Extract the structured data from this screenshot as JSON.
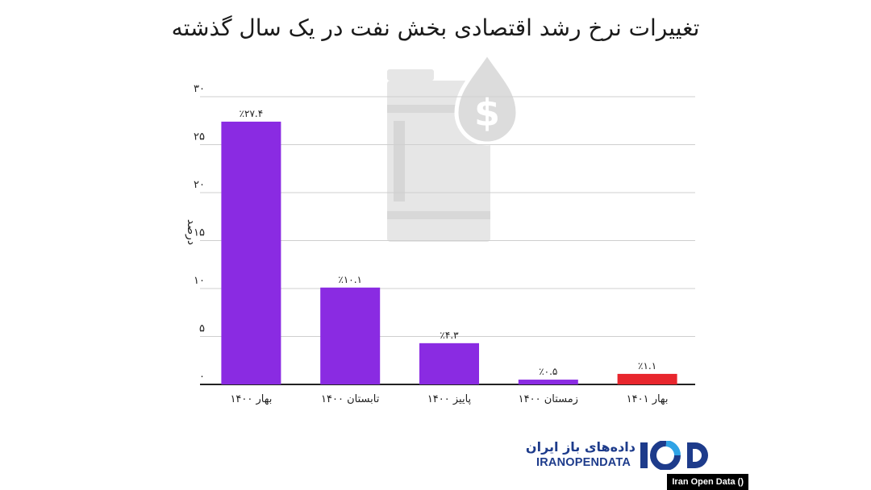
{
  "chart_data": {
    "type": "bar",
    "title": "تغییرات نرخ رشد اقتصادی بخش نفت در یک سال گذشته",
    "ylabel": "درصد",
    "ylim": [
      0,
      30
    ],
    "yticks": [
      {
        "value": 0,
        "label": "۰"
      },
      {
        "value": 5,
        "label": "۵"
      },
      {
        "value": 10,
        "label": "۱۰"
      },
      {
        "value": 15,
        "label": "۱۵"
      },
      {
        "value": 20,
        "label": "۲۰"
      },
      {
        "value": 25,
        "label": "۲۵"
      },
      {
        "value": 30,
        "label": "۳۰"
      }
    ],
    "grid": true,
    "categories": [
      "بهار ۱۴۰۰",
      "تابستان ۱۴۰۰",
      "پاییز ۱۴۰۰",
      "زمستان ۱۴۰۰",
      "بهار ۱۴۰۱"
    ],
    "values": [
      27.4,
      10.1,
      4.3,
      0.5,
      1.1
    ],
    "data_labels": [
      "٪۲۷.۴",
      "٪۱۰.۱",
      "٪۴.۳",
      "٪۰.۵",
      "٪۱.۱"
    ],
    "colors": [
      "#8a2be2",
      "#8a2be2",
      "#8a2be2",
      "#8a2be2",
      "#e8262d"
    ]
  },
  "branding": {
    "logo_fa": "داده‌های باز ایران",
    "logo_en": "IRANOPENDATA",
    "logo_mark": "IOD",
    "logo_color": "#1d3b8b",
    "logo_accent": "#2fa3e6",
    "watermark_icon": "oil-barrel-dollar-icon",
    "credit": "Iran Open Data ()"
  }
}
